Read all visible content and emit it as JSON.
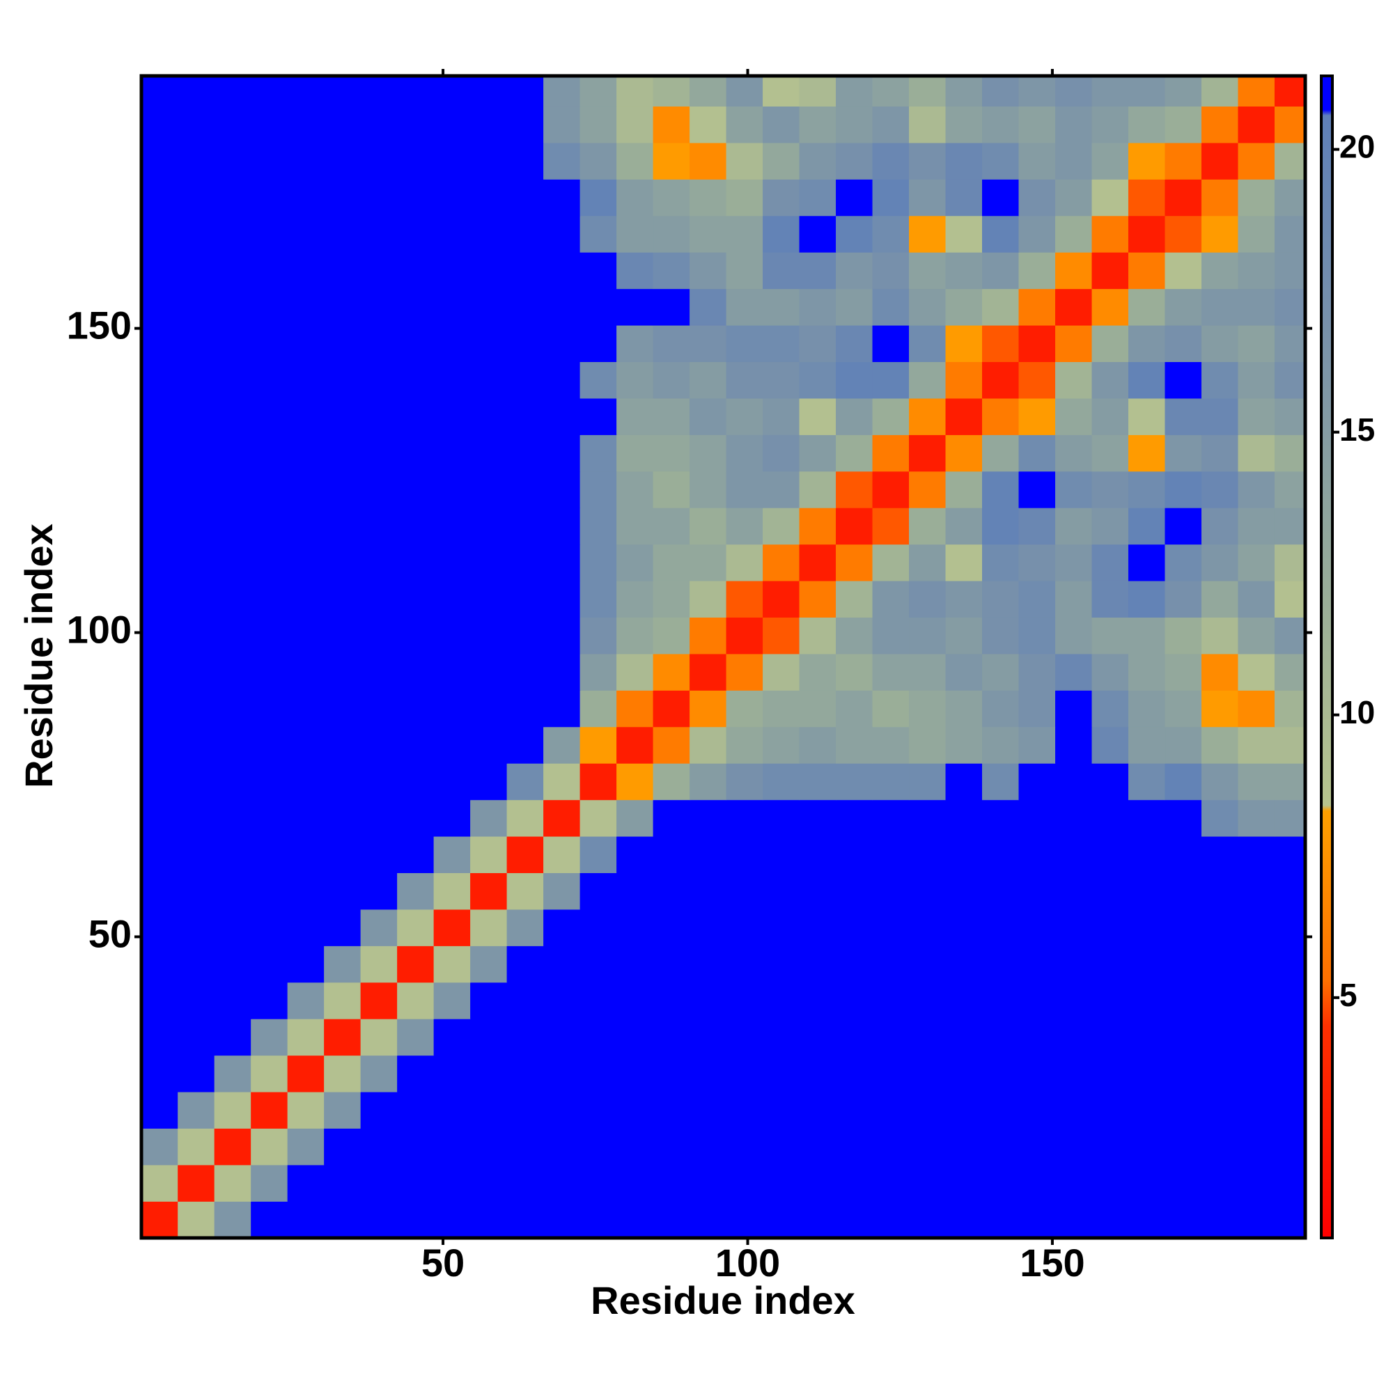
{
  "chart_data": {
    "type": "heatmap",
    "x_label": "Residue index",
    "y_label": "Residue index",
    "xlim": [
      0.5,
      191.5
    ],
    "ylim": [
      0.5,
      191.5
    ],
    "xticks": [
      50,
      100,
      150
    ],
    "yticks": [
      50,
      100,
      150
    ],
    "zlim": [
      0.75,
      21.3
    ],
    "zticks": [
      5,
      10,
      15,
      20
    ],
    "colorscale": [
      {
        "value": 0.75,
        "color": "#ff0000"
      },
      {
        "value": 4.5,
        "color": "#ff3000"
      },
      {
        "value": 5.3,
        "color": "#ff7000"
      },
      {
        "value": 8.3,
        "color": "#ffa000"
      },
      {
        "value": 8.4,
        "color": "#b8c48e"
      },
      {
        "value": 12,
        "color": "#9aae98"
      },
      {
        "value": 17,
        "color": "#7790ab"
      },
      {
        "value": 20.6,
        "color": "#5f80b8"
      },
      {
        "value": 20.7,
        "color": "#0000ff"
      },
      {
        "value": 21.3,
        "color": "#0000ff"
      }
    ],
    "x_bins": [
      0.5,
      6.5,
      12.5,
      18.5,
      24.5,
      30.5,
      36.5,
      42.5,
      48.5,
      54.5,
      60.5,
      66.5,
      72.5,
      78.5,
      84.5,
      90.5,
      96.5,
      102.5,
      108.5,
      114.5,
      120.5,
      126.5,
      132.5,
      138.5,
      144.5,
      150.5,
      156.5,
      162.5,
      168.5,
      174.5,
      180.5,
      186.5,
      191.5
    ],
    "y_bins": [
      0.5,
      6.5,
      12.5,
      18.5,
      24.5,
      30.5,
      36.5,
      42.5,
      48.5,
      54.5,
      60.5,
      66.5,
      72.5,
      78.5,
      84.5,
      90.5,
      96.5,
      102.5,
      108.5,
      114.5,
      120.5,
      126.5,
      132.5,
      138.5,
      144.5,
      150.5,
      156.5,
      162.5,
      168.5,
      174.5,
      180.5,
      186.5,
      191.5
    ],
    "z": [
      [
        3,
        9,
        16,
        21,
        21,
        21,
        21,
        21,
        21,
        21,
        21,
        21,
        21,
        21,
        21,
        21,
        21,
        21,
        21,
        21,
        21,
        21,
        21,
        21,
        21,
        21,
        21,
        21,
        21,
        21,
        21,
        21
      ],
      [
        9,
        3,
        9,
        16,
        21,
        21,
        21,
        21,
        21,
        21,
        21,
        21,
        21,
        21,
        21,
        21,
        21,
        21,
        21,
        21,
        21,
        21,
        21,
        21,
        21,
        21,
        21,
        21,
        21,
        21,
        21,
        21
      ],
      [
        16,
        9,
        3,
        9,
        16,
        21,
        21,
        21,
        21,
        21,
        21,
        21,
        21,
        21,
        21,
        21,
        21,
        21,
        21,
        21,
        21,
        21,
        21,
        21,
        21,
        21,
        21,
        21,
        21,
        21,
        21,
        21
      ],
      [
        21,
        16,
        9,
        3,
        9,
        16,
        21,
        21,
        21,
        21,
        21,
        21,
        21,
        21,
        21,
        21,
        21,
        21,
        21,
        21,
        21,
        21,
        21,
        21,
        21,
        21,
        21,
        21,
        21,
        21,
        21,
        21
      ],
      [
        21,
        21,
        16,
        9,
        3,
        9,
        16,
        21,
        21,
        21,
        21,
        21,
        21,
        21,
        21,
        21,
        21,
        21,
        21,
        21,
        21,
        21,
        21,
        21,
        21,
        21,
        21,
        21,
        21,
        21,
        21,
        21
      ],
      [
        21,
        21,
        21,
        16,
        9,
        3,
        9,
        16,
        21,
        21,
        21,
        21,
        21,
        21,
        21,
        21,
        21,
        21,
        21,
        21,
        21,
        21,
        21,
        21,
        21,
        21,
        21,
        21,
        21,
        21,
        21,
        21
      ],
      [
        21,
        21,
        21,
        21,
        16,
        9,
        3,
        9,
        16,
        21,
        21,
        21,
        21,
        21,
        21,
        21,
        21,
        21,
        21,
        21,
        21,
        21,
        21,
        21,
        21,
        21,
        21,
        21,
        21,
        21,
        21,
        21
      ],
      [
        21,
        21,
        21,
        21,
        21,
        16,
        9,
        3,
        9,
        16,
        21,
        21,
        21,
        21,
        21,
        21,
        21,
        21,
        21,
        21,
        21,
        21,
        21,
        21,
        21,
        21,
        21,
        21,
        21,
        21,
        21,
        21
      ],
      [
        21,
        21,
        21,
        21,
        21,
        21,
        16,
        9,
        3,
        9,
        16,
        21,
        21,
        21,
        21,
        21,
        21,
        21,
        21,
        21,
        21,
        21,
        21,
        21,
        21,
        21,
        21,
        21,
        21,
        21,
        21,
        21
      ],
      [
        21,
        21,
        21,
        21,
        21,
        21,
        21,
        16,
        9,
        3,
        9,
        16,
        21,
        21,
        21,
        21,
        21,
        21,
        21,
        21,
        21,
        21,
        21,
        21,
        21,
        21,
        21,
        21,
        21,
        21,
        21,
        21
      ],
      [
        21,
        21,
        21,
        21,
        21,
        21,
        21,
        21,
        16,
        9,
        3,
        9,
        18,
        21,
        21,
        21,
        21,
        21,
        21,
        21,
        21,
        21,
        21,
        21,
        21,
        21,
        21,
        21,
        21,
        21,
        21,
        21
      ],
      [
        21,
        21,
        21,
        21,
        21,
        21,
        21,
        21,
        21,
        16,
        9,
        3,
        9,
        15,
        21,
        21,
        21,
        21,
        21,
        21,
        21,
        21,
        21,
        21,
        21,
        21,
        21,
        21,
        21,
        18,
        16,
        16
      ],
      [
        21,
        21,
        21,
        21,
        21,
        21,
        21,
        21,
        21,
        21,
        18,
        9,
        3,
        8,
        12,
        15,
        17,
        18,
        18,
        18,
        18,
        18,
        21,
        18,
        21,
        21,
        21,
        18,
        20,
        16,
        14,
        14
      ],
      [
        21,
        21,
        21,
        21,
        21,
        21,
        21,
        21,
        21,
        21,
        21,
        15,
        8,
        3,
        6,
        10,
        13,
        14,
        15,
        14,
        14,
        13,
        14,
        15,
        16,
        21,
        19,
        15,
        15,
        12,
        10,
        10
      ],
      [
        21,
        21,
        21,
        21,
        21,
        21,
        21,
        21,
        21,
        21,
        21,
        21,
        12,
        6,
        3,
        7,
        12,
        13,
        13,
        14,
        12,
        13,
        14,
        16,
        17,
        21,
        18,
        15,
        14,
        8,
        7,
        11
      ],
      [
        21,
        21,
        21,
        21,
        21,
        21,
        21,
        21,
        21,
        21,
        21,
        21,
        15,
        10,
        7,
        3,
        6,
        10,
        13,
        12,
        14,
        14,
        16,
        15,
        17,
        19,
        16,
        14,
        13,
        7,
        9,
        13
      ],
      [
        21,
        21,
        21,
        21,
        21,
        21,
        21,
        21,
        21,
        21,
        21,
        21,
        17,
        13,
        12,
        6,
        3,
        5,
        10,
        14,
        16,
        16,
        15,
        17,
        18,
        15,
        14,
        14,
        12,
        10,
        14,
        16
      ],
      [
        21,
        21,
        21,
        21,
        21,
        21,
        21,
        21,
        21,
        21,
        21,
        21,
        18,
        14,
        13,
        10,
        5,
        3,
        6,
        11,
        16,
        17,
        16,
        17,
        18,
        15,
        19,
        20,
        17,
        13,
        16,
        9
      ],
      [
        21,
        21,
        21,
        21,
        21,
        21,
        21,
        21,
        21,
        21,
        21,
        21,
        18,
        15,
        13,
        13,
        10,
        6,
        3,
        6,
        11,
        15,
        9,
        18,
        17,
        16,
        19,
        21,
        18,
        16,
        14,
        10
      ],
      [
        21,
        21,
        21,
        21,
        21,
        21,
        21,
        21,
        21,
        21,
        21,
        21,
        18,
        14,
        14,
        12,
        14,
        11,
        6,
        3,
        5,
        12,
        15,
        20,
        19,
        15,
        16,
        20,
        21,
        17,
        15,
        15
      ],
      [
        21,
        21,
        21,
        21,
        21,
        21,
        21,
        21,
        21,
        21,
        21,
        21,
        18,
        14,
        12,
        14,
        16,
        16,
        11,
        5,
        3,
        6,
        12,
        20,
        21,
        18,
        17,
        18,
        20,
        19,
        16,
        14
      ],
      [
        21,
        21,
        21,
        21,
        21,
        21,
        21,
        21,
        21,
        21,
        21,
        21,
        18,
        13,
        13,
        14,
        16,
        17,
        15,
        12,
        6,
        3,
        7,
        13,
        18,
        15,
        14,
        8,
        16,
        17,
        10,
        12
      ],
      [
        21,
        21,
        21,
        21,
        21,
        21,
        21,
        21,
        21,
        21,
        21,
        21,
        21,
        14,
        14,
        16,
        15,
        16,
        9,
        15,
        12,
        7,
        3,
        6,
        8,
        13,
        15,
        9,
        19,
        19,
        14,
        15
      ],
      [
        21,
        21,
        21,
        21,
        21,
        21,
        21,
        21,
        21,
        21,
        21,
        21,
        18,
        15,
        16,
        15,
        17,
        17,
        18,
        20,
        20,
        13,
        6,
        3,
        5,
        11,
        16,
        20,
        21,
        18,
        15,
        17
      ],
      [
        21,
        21,
        21,
        21,
        21,
        21,
        21,
        21,
        21,
        21,
        21,
        21,
        21,
        16,
        17,
        17,
        18,
        18,
        17,
        19,
        21,
        18,
        8,
        5,
        3,
        6,
        12,
        16,
        17,
        15,
        14,
        16
      ],
      [
        21,
        21,
        21,
        21,
        21,
        21,
        21,
        21,
        21,
        21,
        21,
        21,
        21,
        21,
        21,
        19,
        15,
        15,
        16,
        15,
        18,
        15,
        13,
        11,
        6,
        3,
        7,
        12,
        15,
        16,
        16,
        17
      ],
      [
        21,
        21,
        21,
        21,
        21,
        21,
        21,
        21,
        21,
        21,
        21,
        21,
        21,
        19,
        18,
        16,
        14,
        19,
        19,
        16,
        17,
        14,
        15,
        16,
        12,
        7,
        3,
        6,
        9,
        14,
        15,
        16
      ],
      [
        21,
        21,
        21,
        21,
        21,
        21,
        21,
        21,
        21,
        21,
        21,
        21,
        18,
        15,
        15,
        14,
        14,
        20,
        21,
        20,
        18,
        8,
        9,
        20,
        16,
        12,
        6,
        3,
        5,
        8,
        13,
        16
      ],
      [
        21,
        21,
        21,
        21,
        21,
        21,
        21,
        21,
        21,
        21,
        21,
        21,
        20,
        15,
        14,
        13,
        12,
        17,
        18,
        21,
        20,
        16,
        19,
        21,
        17,
        15,
        9,
        5,
        3,
        6,
        12,
        15
      ],
      [
        21,
        21,
        21,
        21,
        21,
        21,
        21,
        21,
        21,
        21,
        21,
        18,
        16,
        12,
        8,
        7,
        10,
        13,
        16,
        17,
        19,
        17,
        19,
        18,
        15,
        16,
        14,
        8,
        6,
        3,
        6,
        11
      ],
      [
        21,
        21,
        21,
        21,
        21,
        21,
        21,
        21,
        21,
        21,
        21,
        16,
        14,
        10,
        7,
        9,
        14,
        16,
        14,
        15,
        16,
        10,
        14,
        15,
        14,
        16,
        15,
        13,
        12,
        6,
        3,
        6
      ],
      [
        21,
        21,
        21,
        21,
        21,
        21,
        21,
        21,
        21,
        21,
        21,
        16,
        14,
        10,
        11,
        13,
        16,
        9,
        10,
        15,
        14,
        12,
        15,
        17,
        16,
        17,
        16,
        16,
        15,
        11,
        6,
        3
      ]
    ]
  }
}
